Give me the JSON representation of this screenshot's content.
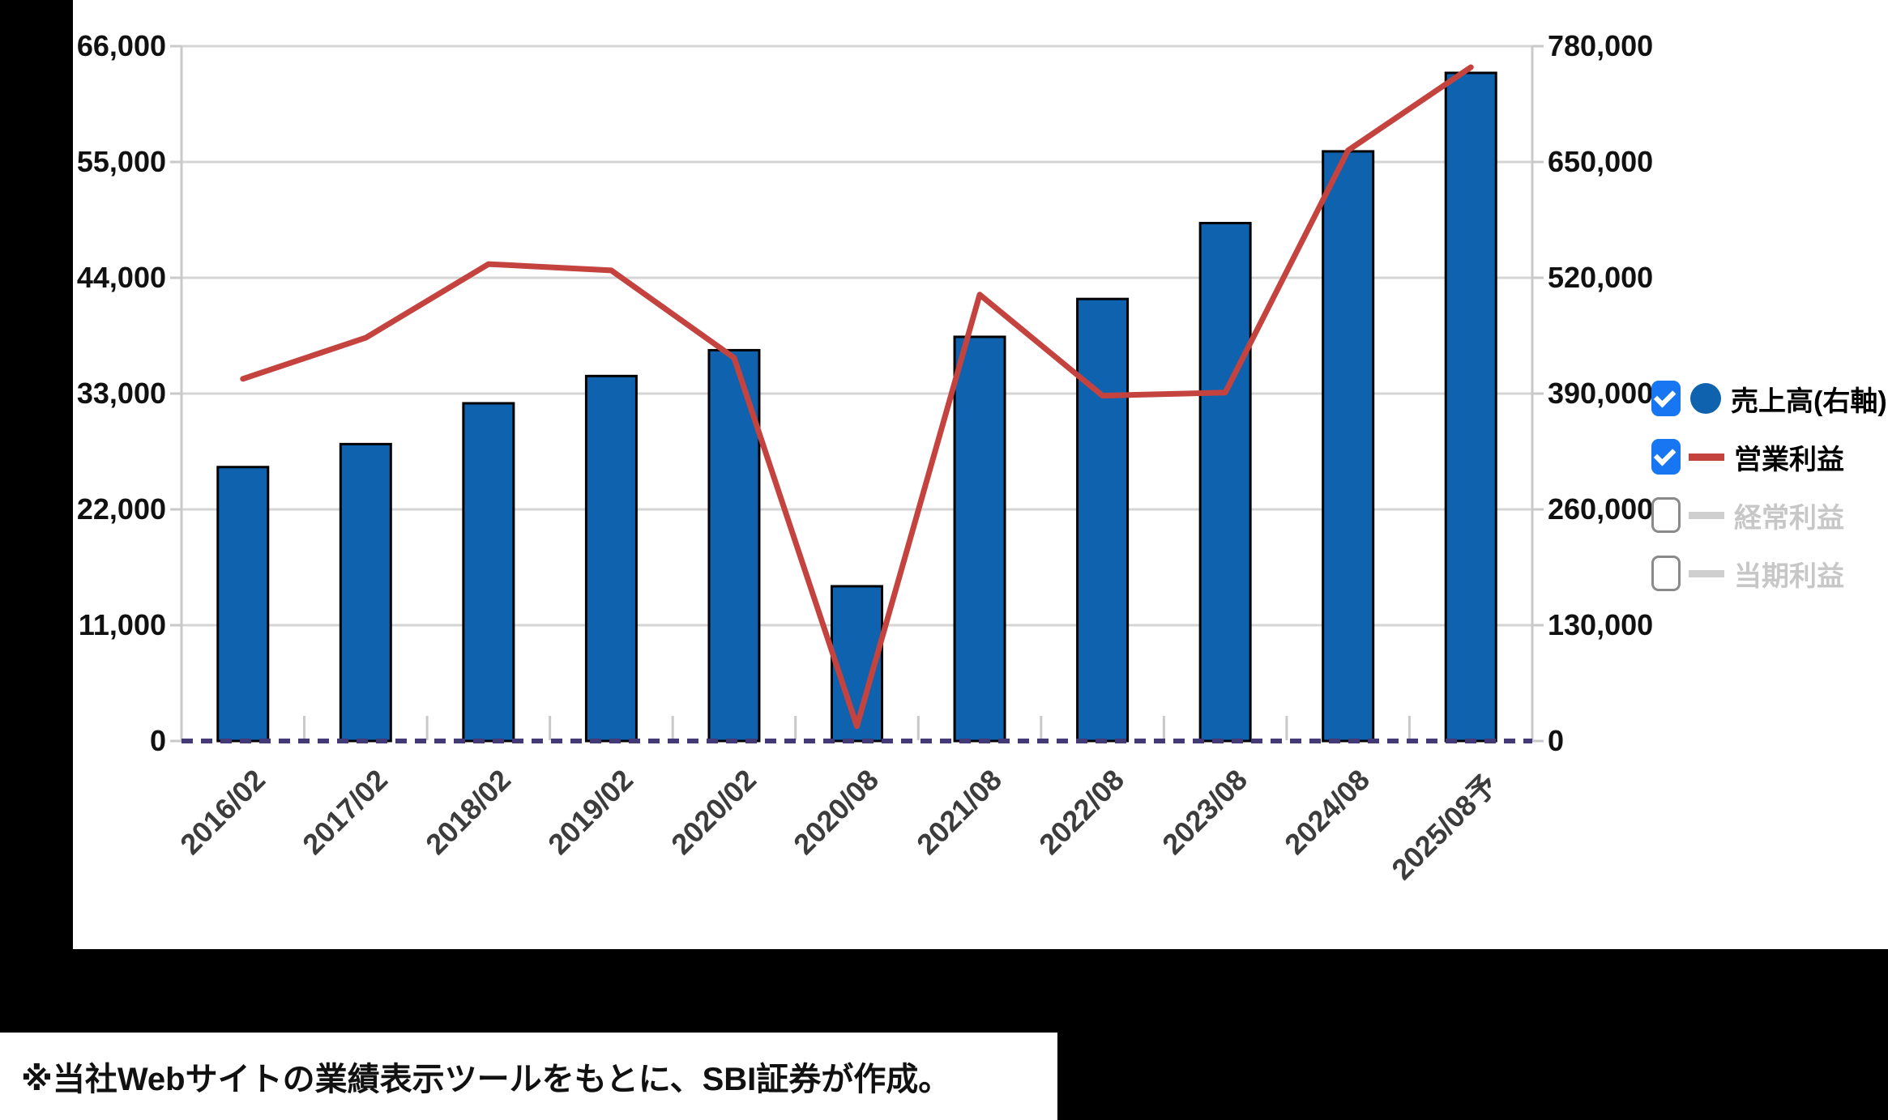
{
  "chart_data": {
    "type": "bar+line combo",
    "categories": [
      "2016/02",
      "2017/02",
      "2018/02",
      "2019/02",
      "2020/02",
      "2020/08",
      "2021/08",
      "2022/08",
      "2023/08",
      "2024/08",
      "2025/08予"
    ],
    "series": [
      {
        "name": "売上高(右軸)",
        "type": "bar",
        "axis": "right",
        "color": "#0f63ae",
        "enabled": true,
        "values": [
          307500,
          333300,
          379100,
          409700,
          438700,
          173700,
          453700,
          496200,
          581400,
          661900,
          750000
        ]
      },
      {
        "name": "営業利益",
        "type": "line",
        "axis": "left",
        "color": "#c5433f",
        "enabled": true,
        "values": [
          34400,
          38300,
          45300,
          44700,
          36400,
          1400,
          42400,
          32800,
          33100,
          56100,
          64000
        ]
      },
      {
        "name": "経常利益",
        "type": "line",
        "axis": "left",
        "color": "#cfcfcf",
        "enabled": false,
        "values": []
      },
      {
        "name": "当期利益",
        "type": "line",
        "axis": "left",
        "color": "#cfcfcf",
        "enabled": false,
        "values": []
      }
    ],
    "left_axis": {
      "min": 0,
      "max": 66000,
      "tick_step": 11000,
      "labels_top_to_bottom": [
        "66,000",
        "55,000",
        "44,000",
        "33,000",
        "22,000",
        "11,000",
        "0"
      ]
    },
    "right_axis": {
      "min": 0,
      "max": 780000,
      "tick_step": 130000,
      "labels_top_to_bottom": [
        "780,000",
        "650,000",
        "520,000",
        "390,000",
        "260,000",
        "130,000",
        "0"
      ]
    },
    "grid": true,
    "legend_position": "right"
  },
  "legend": {
    "items": [
      {
        "label": "売上高(右軸)",
        "checked": true,
        "marker": "circle",
        "color": "#0f63ae"
      },
      {
        "label": "営業利益",
        "checked": true,
        "marker": "line",
        "color": "#c5433f"
      },
      {
        "label": "経常利益",
        "checked": false,
        "marker": "line",
        "color": "#cfcfcf"
      },
      {
        "label": "当期利益",
        "checked": false,
        "marker": "line",
        "color": "#cfcfcf"
      }
    ]
  },
  "caption": {
    "text": "※当社Webサイトの業績表示ツールをもとに、SBI証券が作成。"
  },
  "colors": {
    "bar_fill": "#0f63ae",
    "bar_border": "#000000",
    "profit_line": "#c5433f",
    "gridline": "#d5d5d5",
    "axis_line": "#c9c9c9",
    "zero_baseline_dashed": "#443a78",
    "checkbox_checked": "#1876f2",
    "disabled_text": "#c7c7c7",
    "disabled_marker": "#cfcfcf",
    "panel_background": "#ffffff",
    "page_background": "#000000"
  }
}
